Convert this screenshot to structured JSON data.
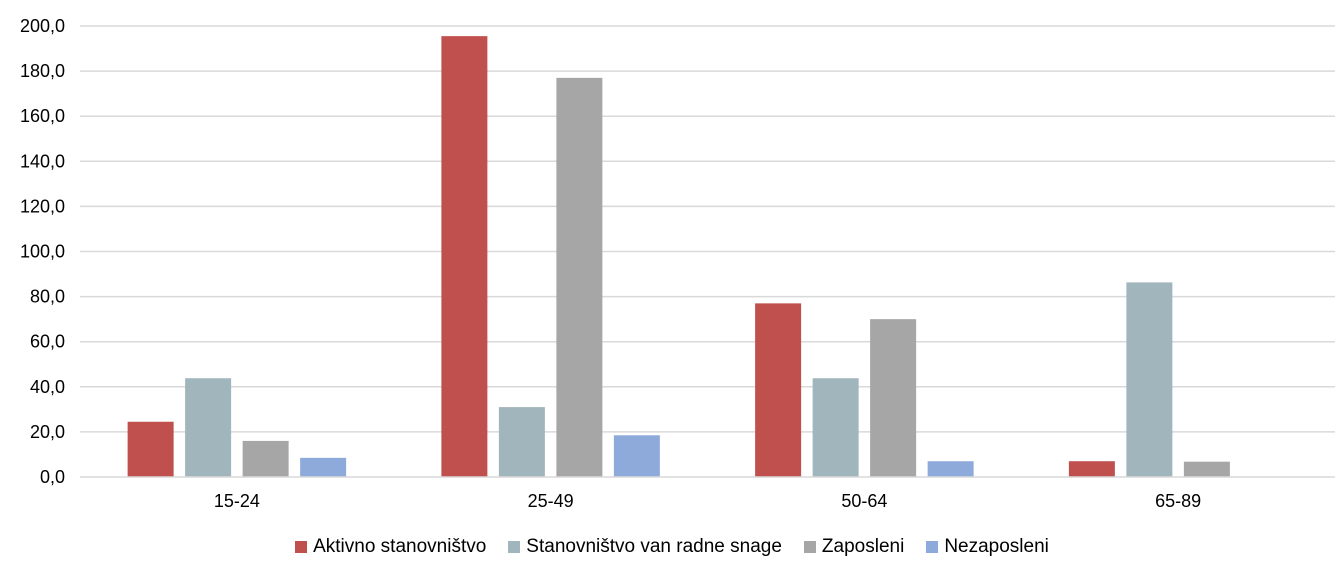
{
  "chart_data": {
    "type": "bar",
    "categories": [
      "15-24",
      "25-49",
      "50-64",
      "65-89"
    ],
    "series": [
      {
        "name": "Aktivno stanovništvo",
        "color": "#C0504D",
        "values": [
          24.5,
          195.5,
          77.0,
          7.0
        ]
      },
      {
        "name": "Stanovništvo van radne snage",
        "color": "#A1B5BC",
        "values": [
          43.8,
          31.0,
          43.8,
          86.3
        ]
      },
      {
        "name": "Zaposleni",
        "color": "#A6A6A6",
        "values": [
          16.0,
          177.0,
          70.0,
          6.8
        ]
      },
      {
        "name": "Nezaposleni",
        "color": "#8EAADB",
        "values": [
          8.5,
          18.5,
          7.0,
          null
        ]
      }
    ],
    "ylim": [
      0,
      200
    ],
    "yticks": [
      "0,0",
      "20,0",
      "40,0",
      "60,0",
      "80,0",
      "100,0",
      "120,0",
      "140,0",
      "160,0",
      "180,0",
      "200,0"
    ],
    "grid": true,
    "legend_position": "bottom",
    "gridline_color": "#D9D9D9"
  }
}
